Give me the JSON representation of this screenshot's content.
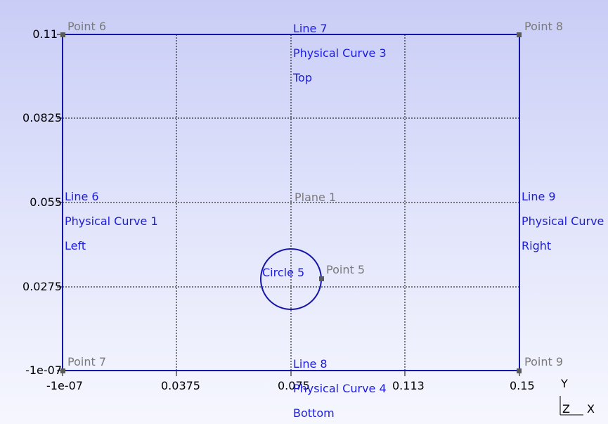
{
  "colors": {
    "geometry": "#1414a8",
    "label_blue": "#1c1ce0",
    "label_gray": "#7a7a7a",
    "point_marker": "#5a5a5a"
  },
  "axes": {
    "x_ticks": [
      "-1e-07",
      "0.0375",
      "0.075",
      "0.113",
      "0.15"
    ],
    "y_ticks": [
      "0.11",
      "0.0825",
      "0.055",
      "0.0275",
      "-1e-07"
    ],
    "grid": true
  },
  "points": [
    "Point 5",
    "Point 6",
    "Point 7",
    "Point 8",
    "Point 9"
  ],
  "lines": {
    "line6": "Line 6",
    "line7": "Line 7",
    "line8": "Line 8",
    "line9": "Line 9",
    "circle5": "Circle 5"
  },
  "physical_curves": {
    "pc1": "Physical Curve 1",
    "pc3": "Physical Curve 3",
    "pc4": "Physical Curve 4",
    "pc_right": "Physical Curve"
  },
  "boundary_names": {
    "left": "Left",
    "top": "Top",
    "bottom": "Bottom",
    "right": "Right"
  },
  "plane": "Plane 1",
  "axis_triad": {
    "y": "Y",
    "z": "Z",
    "x": "X"
  }
}
